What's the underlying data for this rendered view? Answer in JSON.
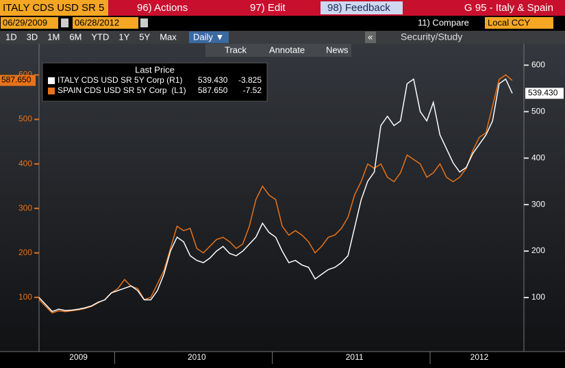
{
  "header": {
    "ticker": "ITALY CDS USD SR 5",
    "menu": [
      "96) Actions",
      "97) Edit",
      "98) Feedback"
    ],
    "title": "G 95 - Italy & Spain",
    "start_date": "06/29/2009",
    "end_date": "06/28/2012",
    "compare": "11) Compare",
    "currency": "Local CCY",
    "periods": [
      "1D",
      "3D",
      "1M",
      "6M",
      "YTD",
      "1Y",
      "5Y",
      "Max"
    ],
    "frequency": "Daily ▼",
    "collapse": "«",
    "study": "Security/Study",
    "tools": [
      "Track",
      "Annotate",
      "News"
    ]
  },
  "chart_data": {
    "type": "line",
    "legend_title": "Last Price",
    "categories": [
      null,
      null,
      null,
      null,
      null,
      null,
      "2009",
      null,
      null,
      null,
      null,
      null,
      null,
      null,
      null,
      null,
      null,
      null,
      null,
      null,
      null,
      null,
      null,
      null,
      "2010",
      null,
      null,
      null,
      null,
      null,
      null,
      null,
      null,
      null,
      null,
      null,
      null,
      null,
      null,
      null,
      null,
      null,
      null,
      null,
      null,
      null,
      null,
      null,
      "2011",
      null,
      null,
      null,
      null,
      null,
      null,
      null,
      null,
      null,
      null,
      null,
      null,
      null,
      null,
      null,
      null,
      null,
      null,
      "2012",
      null,
      null,
      null,
      null,
      null
    ],
    "series": [
      {
        "name": "ITALY CDS USD SR 5Y Corp (R1)",
        "color": "#ffffff",
        "axis": "y2",
        "last_price": {
          "value": 539.43,
          "label": "539.430"
        },
        "change": -3.825,
        "values": [
          100,
          85,
          70,
          75,
          72,
          73,
          75,
          78,
          82,
          90,
          95,
          110,
          115,
          120,
          125,
          115,
          95,
          95,
          115,
          150,
          200,
          230,
          220,
          190,
          180,
          175,
          185,
          200,
          210,
          195,
          190,
          200,
          215,
          230,
          260,
          240,
          230,
          200,
          175,
          180,
          170,
          165,
          140,
          150,
          160,
          165,
          175,
          190,
          250,
          310,
          350,
          370,
          470,
          490,
          470,
          480,
          560,
          570,
          500,
          480,
          520,
          450,
          420,
          390,
          370,
          380,
          410,
          430,
          450,
          480,
          560,
          570,
          539.43
        ]
      },
      {
        "name": "SPAIN CDS USD SR 5Y Corp  (L1)",
        "color": "#e8731a",
        "axis": "y",
        "last_price": {
          "value": 587.65,
          "label": "587.650"
        },
        "change": -7.52,
        "values": [
          95,
          80,
          65,
          70,
          68,
          70,
          72,
          75,
          80,
          88,
          95,
          110,
          120,
          140,
          125,
          120,
          95,
          100,
          130,
          160,
          210,
          260,
          250,
          255,
          210,
          200,
          215,
          230,
          235,
          225,
          210,
          220,
          260,
          320,
          350,
          330,
          320,
          260,
          240,
          250,
          240,
          225,
          200,
          215,
          235,
          240,
          255,
          280,
          330,
          360,
          400,
          390,
          400,
          370,
          360,
          380,
          420,
          410,
          400,
          370,
          380,
          400,
          370,
          360,
          370,
          390,
          430,
          460,
          470,
          530,
          590,
          600,
          587.65
        ]
      }
    ],
    "ylim": [
      -8,
      670
    ],
    "yticks": [
      100,
      200,
      300,
      400,
      500,
      600
    ],
    "y2lim": [
      -3,
      646
    ],
    "y2ticks": [
      100,
      200,
      300,
      400,
      500,
      600
    ],
    "grid": false
  }
}
